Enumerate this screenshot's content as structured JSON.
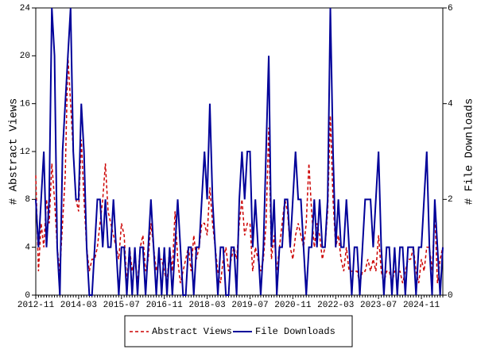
{
  "chart_data": {
    "type": "line",
    "ylabel": "# Abstract Views",
    "y2label": "# File Downloads",
    "categories": [
      "2012-11",
      null,
      null,
      null,
      null,
      null,
      null,
      null,
      null,
      null,
      null,
      null,
      null,
      null,
      null,
      null,
      "2014-03",
      null,
      null,
      null,
      null,
      null,
      null,
      null,
      null,
      null,
      null,
      null,
      null,
      null,
      null,
      null,
      "2015-07",
      null,
      null,
      null,
      null,
      null,
      null,
      null,
      null,
      null,
      null,
      null,
      null,
      null,
      null,
      null,
      "2016-11",
      null,
      null,
      null,
      null,
      null,
      null,
      null,
      null,
      null,
      null,
      null,
      null,
      null,
      null,
      null,
      "2018-03",
      null,
      null,
      null,
      null,
      null,
      null,
      null,
      null,
      null,
      null,
      null,
      null,
      null,
      null,
      null,
      "2019-07",
      null,
      null,
      null,
      null,
      null,
      null,
      null,
      null,
      null,
      null,
      null,
      null,
      null,
      null,
      null,
      "2020-11",
      null,
      null,
      null,
      null,
      null,
      null,
      null,
      null,
      null,
      null,
      null,
      null,
      null,
      null,
      null,
      "2022-03",
      null,
      null,
      null,
      null,
      null,
      null,
      null,
      null,
      null,
      null,
      null,
      null,
      null,
      null,
      null,
      "2023-07",
      null,
      null,
      null,
      null,
      null,
      null,
      null,
      null,
      null,
      null,
      null,
      null,
      null,
      null,
      null,
      "2024-11",
      null,
      null,
      null,
      null,
      null,
      null,
      null,
      null
    ],
    "series": [
      {
        "name": "Abstract Views",
        "color": "#cc0000",
        "dashed": true,
        "values": [
          10,
          2,
          6,
          4,
          8,
          6,
          11,
          8,
          4,
          2,
          6,
          10,
          20,
          16,
          12,
          8,
          7,
          13,
          8,
          4,
          2,
          3,
          3,
          4,
          6,
          8,
          11,
          7,
          6,
          5,
          4,
          3,
          6,
          5,
          1,
          4,
          2,
          3,
          1,
          4,
          5,
          2,
          3,
          6,
          4,
          2,
          3,
          3,
          2,
          1,
          4,
          2,
          7,
          3,
          1,
          2,
          3,
          4,
          2,
          5,
          3,
          4,
          6,
          6,
          5,
          9,
          6,
          4,
          2,
          1,
          3,
          4,
          2,
          3,
          4,
          3,
          6,
          8,
          5,
          6,
          6,
          2,
          4,
          3,
          2,
          3,
          6,
          14,
          3,
          5,
          2,
          4,
          6,
          8,
          7,
          4,
          3,
          5,
          6,
          5,
          4,
          6,
          11,
          7,
          4,
          6,
          5,
          3,
          4,
          7,
          15,
          8,
          4,
          5,
          3,
          2,
          4,
          2,
          2,
          2,
          2,
          1,
          2,
          2,
          3,
          2,
          3,
          2,
          5,
          2,
          1,
          2,
          2,
          1,
          2,
          2,
          2,
          1,
          2,
          3,
          3,
          4,
          2,
          1,
          3,
          2,
          4,
          4,
          2,
          7,
          1,
          3,
          4
        ]
      },
      {
        "name": "File Downloads",
        "color": "#000099",
        "axis": "y2",
        "dashed": false,
        "values": [
          2,
          1,
          2,
          3,
          1,
          2,
          6,
          5,
          1,
          0,
          3,
          4,
          5,
          6,
          3,
          2,
          2,
          4,
          3,
          1,
          0,
          0,
          1,
          2,
          2,
          1,
          2,
          1,
          1,
          2,
          1,
          0,
          1,
          1,
          0,
          1,
          0,
          1,
          0,
          1,
          1,
          0,
          1,
          2,
          1,
          0,
          1,
          0,
          1,
          0,
          1,
          0,
          1,
          2,
          1,
          0,
          0,
          1,
          1,
          0,
          1,
          1,
          2,
          3,
          2,
          4,
          2,
          1,
          0,
          1,
          1,
          0,
          0,
          1,
          1,
          0,
          2,
          3,
          2,
          3,
          3,
          1,
          2,
          1,
          0,
          1,
          3,
          5,
          1,
          2,
          0,
          1,
          1,
          2,
          2,
          1,
          2,
          3,
          2,
          2,
          1,
          0,
          1,
          1,
          2,
          1,
          2,
          1,
          1,
          2,
          6,
          3,
          1,
          2,
          1,
          1,
          2,
          1,
          0,
          1,
          1,
          0,
          1,
          2,
          2,
          2,
          1,
          2,
          3,
          1,
          0,
          1,
          1,
          0,
          1,
          0,
          1,
          1,
          0,
          1,
          1,
          1,
          0,
          1,
          1,
          2,
          3,
          1,
          0,
          2,
          1,
          0,
          1
        ]
      }
    ],
    "ylim": [
      0,
      24
    ],
    "yticks": [
      0,
      4,
      8,
      12,
      16,
      20,
      24
    ],
    "y2lim": [
      0,
      6
    ],
    "y2ticks": [
      0,
      2,
      4,
      6
    ],
    "legend": "bottom"
  }
}
